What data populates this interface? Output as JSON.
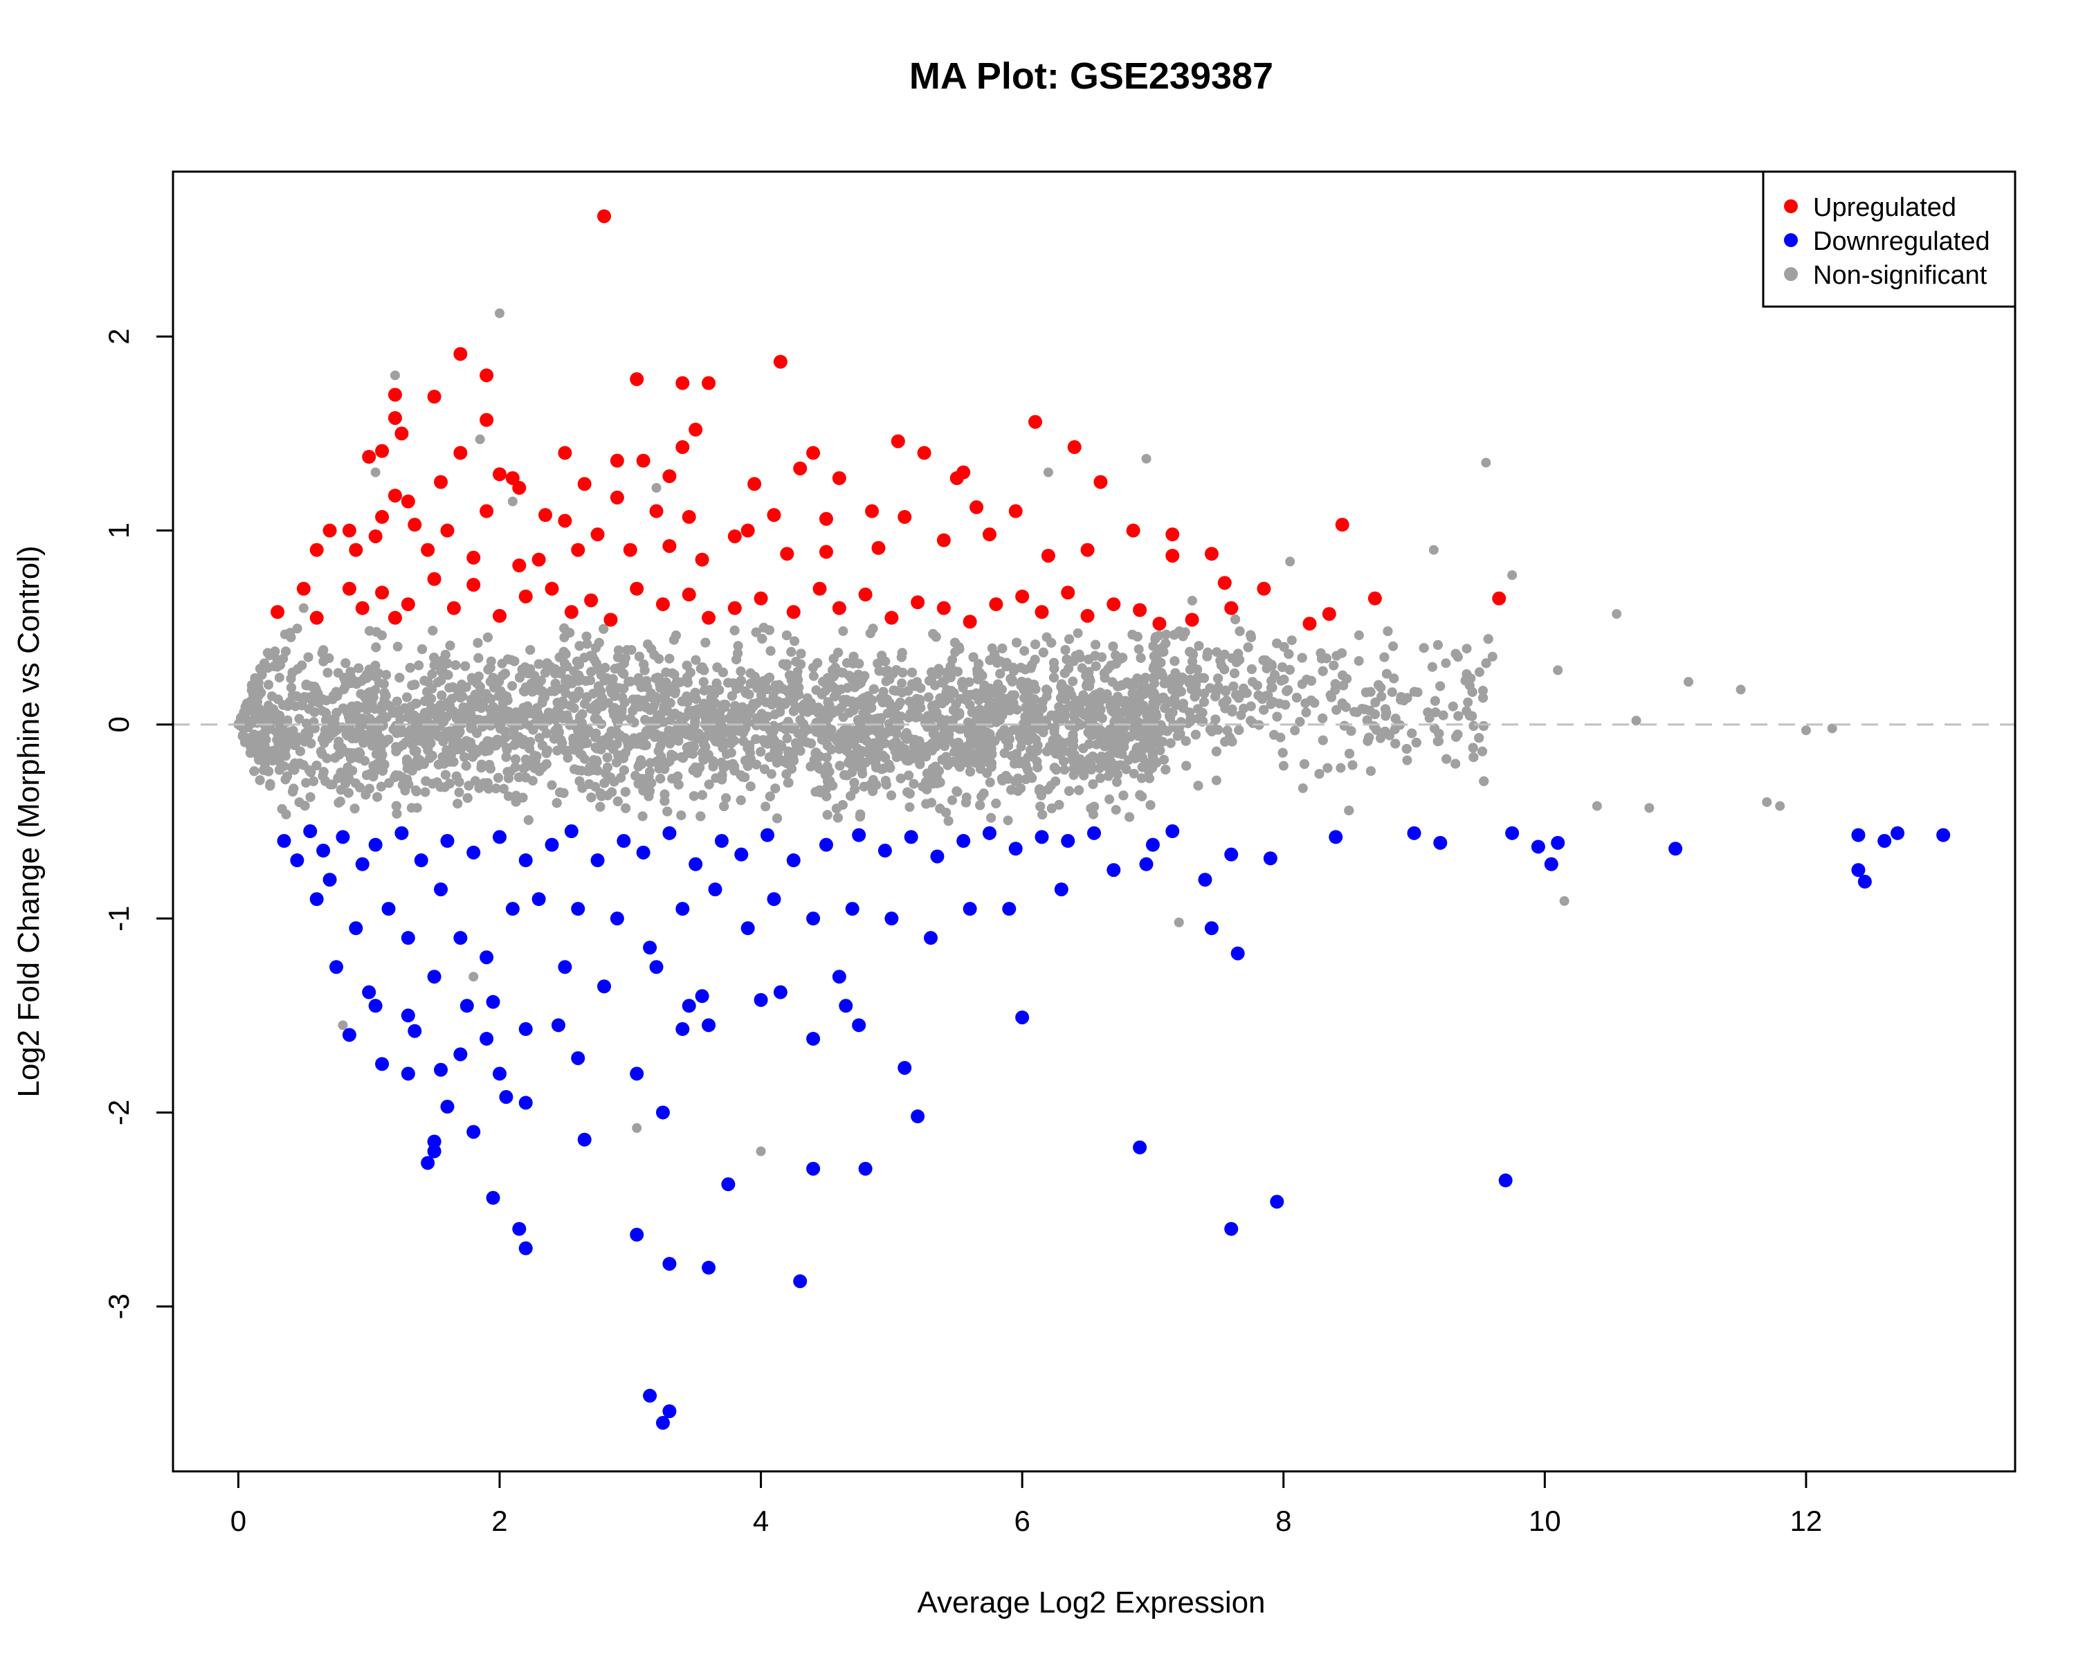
{
  "chart_data": {
    "type": "scatter",
    "title": "MA Plot: GSE239387",
    "xlabel": "Average Log2 Expression",
    "ylabel": "Log2 Fold Change (Morphine vs Control)",
    "xlim": [
      -0.5,
      13.6
    ],
    "ylim": [
      -3.85,
      2.85
    ],
    "x_ticks": [
      0,
      2,
      4,
      6,
      8,
      10,
      12
    ],
    "x_tick_labels": [
      "0",
      "2",
      "4",
      "6",
      "8",
      "10",
      "12"
    ],
    "y_ticks": [
      -3,
      -2,
      -1,
      0,
      1,
      2
    ],
    "y_tick_labels": [
      "-3",
      "-2",
      "-1",
      "0",
      "1",
      "2"
    ],
    "reference_line_y": 0,
    "legend_position": "top-right",
    "series": [
      {
        "name": "Upregulated",
        "color": "#ff0000",
        "points": [
          [
            2.8,
            2.62
          ],
          [
            1.7,
            1.91
          ],
          [
            1.9,
            1.8
          ],
          [
            4.15,
            1.87
          ],
          [
            3.05,
            1.78
          ],
          [
            3.4,
            1.76
          ],
          [
            3.6,
            1.76
          ],
          [
            1.5,
            1.69
          ],
          [
            1.2,
            1.7
          ],
          [
            1.2,
            1.58
          ],
          [
            1.25,
            1.5
          ],
          [
            1.9,
            1.57
          ],
          [
            3.5,
            1.52
          ],
          [
            6.1,
            1.56
          ],
          [
            5.05,
            1.46
          ],
          [
            6.4,
            1.43
          ],
          [
            1.1,
            1.41
          ],
          [
            1.7,
            1.4
          ],
          [
            2.5,
            1.4
          ],
          [
            3.1,
            1.36
          ],
          [
            2.9,
            1.36
          ],
          [
            5.25,
            1.4
          ],
          [
            4.4,
            1.4
          ],
          [
            3.4,
            1.43
          ],
          [
            1.0,
            1.38
          ],
          [
            1.2,
            1.18
          ],
          [
            1.3,
            1.15
          ],
          [
            1.55,
            1.25
          ],
          [
            2.0,
            1.29
          ],
          [
            2.1,
            1.27
          ],
          [
            2.15,
            1.22
          ],
          [
            2.65,
            1.24
          ],
          [
            3.3,
            1.28
          ],
          [
            3.95,
            1.24
          ],
          [
            4.3,
            1.32
          ],
          [
            4.6,
            1.27
          ],
          [
            5.5,
            1.27
          ],
          [
            5.55,
            1.3
          ],
          [
            6.6,
            1.25
          ],
          [
            1.1,
            1.07
          ],
          [
            1.35,
            1.03
          ],
          [
            1.6,
            1.0
          ],
          [
            1.9,
            1.1
          ],
          [
            2.35,
            1.08
          ],
          [
            2.5,
            1.05
          ],
          [
            2.9,
            1.17
          ],
          [
            3.2,
            1.1
          ],
          [
            3.45,
            1.07
          ],
          [
            3.9,
            1.0
          ],
          [
            4.1,
            1.08
          ],
          [
            4.5,
            1.06
          ],
          [
            4.85,
            1.1
          ],
          [
            5.1,
            1.07
          ],
          [
            5.65,
            1.12
          ],
          [
            5.95,
            1.1
          ],
          [
            0.6,
            0.9
          ],
          [
            0.7,
            1.0
          ],
          [
            0.85,
            1.0
          ],
          [
            0.9,
            0.9
          ],
          [
            1.05,
            0.97
          ],
          [
            1.45,
            0.9
          ],
          [
            1.8,
            0.86
          ],
          [
            2.15,
            0.82
          ],
          [
            2.3,
            0.85
          ],
          [
            2.6,
            0.9
          ],
          [
            2.75,
            0.98
          ],
          [
            3.0,
            0.9
          ],
          [
            3.3,
            0.92
          ],
          [
            3.55,
            0.85
          ],
          [
            3.8,
            0.97
          ],
          [
            4.2,
            0.88
          ],
          [
            4.5,
            0.89
          ],
          [
            4.9,
            0.91
          ],
          [
            5.4,
            0.95
          ],
          [
            5.75,
            0.98
          ],
          [
            6.2,
            0.87
          ],
          [
            6.5,
            0.9
          ],
          [
            6.85,
            1.0
          ],
          [
            7.15,
            0.98
          ],
          [
            7.15,
            0.87
          ],
          [
            7.45,
            0.88
          ],
          [
            8.45,
            1.03
          ],
          [
            0.3,
            0.58
          ],
          [
            0.5,
            0.7
          ],
          [
            0.6,
            0.55
          ],
          [
            0.85,
            0.7
          ],
          [
            0.95,
            0.6
          ],
          [
            1.1,
            0.68
          ],
          [
            1.2,
            0.55
          ],
          [
            1.3,
            0.62
          ],
          [
            1.5,
            0.75
          ],
          [
            1.65,
            0.6
          ],
          [
            1.8,
            0.72
          ],
          [
            2.0,
            0.56
          ],
          [
            2.2,
            0.66
          ],
          [
            2.4,
            0.7
          ],
          [
            2.55,
            0.58
          ],
          [
            2.7,
            0.64
          ],
          [
            2.85,
            0.54
          ],
          [
            3.05,
            0.7
          ],
          [
            3.25,
            0.62
          ],
          [
            3.45,
            0.67
          ],
          [
            3.6,
            0.55
          ],
          [
            3.8,
            0.6
          ],
          [
            4.0,
            0.65
          ],
          [
            4.25,
            0.58
          ],
          [
            4.45,
            0.7
          ],
          [
            4.6,
            0.6
          ],
          [
            4.8,
            0.67
          ],
          [
            5.0,
            0.55
          ],
          [
            5.2,
            0.63
          ],
          [
            5.4,
            0.6
          ],
          [
            5.6,
            0.53
          ],
          [
            5.8,
            0.62
          ],
          [
            6.0,
            0.66
          ],
          [
            6.15,
            0.58
          ],
          [
            6.35,
            0.68
          ],
          [
            6.5,
            0.56
          ],
          [
            6.7,
            0.62
          ],
          [
            6.9,
            0.59
          ],
          [
            7.05,
            0.52
          ],
          [
            7.3,
            0.54
          ],
          [
            7.6,
            0.6
          ],
          [
            7.85,
            0.7
          ],
          [
            8.2,
            0.52
          ],
          [
            8.35,
            0.57
          ],
          [
            8.7,
            0.65
          ],
          [
            9.65,
            0.65
          ],
          [
            7.55,
            0.73
          ]
        ]
      },
      {
        "name": "Downregulated",
        "color": "#0000ff",
        "points": [
          [
            3.25,
            -3.6
          ],
          [
            3.3,
            -3.54
          ],
          [
            3.15,
            -3.46
          ],
          [
            4.3,
            -2.87
          ],
          [
            3.3,
            -2.78
          ],
          [
            3.6,
            -2.8
          ],
          [
            2.2,
            -2.7
          ],
          [
            3.05,
            -2.63
          ],
          [
            2.15,
            -2.6
          ],
          [
            7.6,
            -2.6
          ],
          [
            7.95,
            -2.46
          ],
          [
            1.95,
            -2.44
          ],
          [
            3.75,
            -2.37
          ],
          [
            9.7,
            -2.35
          ],
          [
            4.4,
            -2.29
          ],
          [
            4.8,
            -2.29
          ],
          [
            1.45,
            -2.26
          ],
          [
            1.5,
            -2.2
          ],
          [
            1.5,
            -2.15
          ],
          [
            2.65,
            -2.14
          ],
          [
            6.9,
            -2.18
          ],
          [
            1.8,
            -2.1
          ],
          [
            5.2,
            -2.02
          ],
          [
            3.25,
            -2.0
          ],
          [
            1.6,
            -1.97
          ],
          [
            2.05,
            -1.92
          ],
          [
            2.2,
            -1.95
          ],
          [
            1.3,
            -1.8
          ],
          [
            1.1,
            -1.75
          ],
          [
            1.55,
            -1.78
          ],
          [
            1.7,
            -1.7
          ],
          [
            2.0,
            -1.8
          ],
          [
            2.6,
            -1.72
          ],
          [
            2.45,
            -1.55
          ],
          [
            2.2,
            -1.57
          ],
          [
            3.05,
            -1.8
          ],
          [
            5.1,
            -1.77
          ],
          [
            4.75,
            -1.55
          ],
          [
            4.4,
            -1.62
          ],
          [
            6.0,
            -1.51
          ],
          [
            0.85,
            -1.6
          ],
          [
            1.35,
            -1.58
          ],
          [
            1.9,
            -1.62
          ],
          [
            3.4,
            -1.57
          ],
          [
            3.6,
            -1.55
          ],
          [
            0.75,
            -1.25
          ],
          [
            1.0,
            -1.38
          ],
          [
            1.05,
            -1.45
          ],
          [
            1.3,
            -1.5
          ],
          [
            1.5,
            -1.3
          ],
          [
            1.75,
            -1.45
          ],
          [
            1.95,
            -1.43
          ],
          [
            2.5,
            -1.25
          ],
          [
            2.8,
            -1.35
          ],
          [
            3.2,
            -1.25
          ],
          [
            3.45,
            -1.45
          ],
          [
            3.55,
            -1.4
          ],
          [
            4.0,
            -1.42
          ],
          [
            4.15,
            -1.38
          ],
          [
            4.6,
            -1.3
          ],
          [
            4.65,
            -1.45
          ],
          [
            7.45,
            -1.05
          ],
          [
            7.65,
            -1.18
          ],
          [
            0.6,
            -0.9
          ],
          [
            0.7,
            -0.8
          ],
          [
            0.9,
            -1.05
          ],
          [
            1.15,
            -0.95
          ],
          [
            1.3,
            -1.1
          ],
          [
            1.55,
            -0.85
          ],
          [
            1.7,
            -1.1
          ],
          [
            1.9,
            -1.2
          ],
          [
            2.1,
            -0.95
          ],
          [
            2.3,
            -0.9
          ],
          [
            2.6,
            -0.95
          ],
          [
            2.9,
            -1.0
          ],
          [
            3.15,
            -1.15
          ],
          [
            3.4,
            -0.95
          ],
          [
            3.65,
            -0.85
          ],
          [
            3.9,
            -1.05
          ],
          [
            4.1,
            -0.9
          ],
          [
            4.4,
            -1.0
          ],
          [
            4.7,
            -0.95
          ],
          [
            5.0,
            -1.0
          ],
          [
            5.3,
            -1.1
          ],
          [
            5.6,
            -0.95
          ],
          [
            5.9,
            -0.95
          ],
          [
            6.3,
            -0.85
          ],
          [
            6.7,
            -0.75
          ],
          [
            6.95,
            -0.72
          ],
          [
            7.15,
            -0.55
          ],
          [
            7.4,
            -0.8
          ],
          [
            7.6,
            -0.67
          ],
          [
            7.9,
            -0.69
          ],
          [
            8.4,
            -0.58
          ],
          [
            9.0,
            -0.56
          ],
          [
            9.2,
            -0.61
          ],
          [
            9.75,
            -0.56
          ],
          [
            9.95,
            -0.63
          ],
          [
            10.05,
            -0.72
          ],
          [
            10.1,
            -0.61
          ],
          [
            11.0,
            -0.64
          ],
          [
            12.4,
            -0.57
          ],
          [
            12.4,
            -0.75
          ],
          [
            12.45,
            -0.81
          ],
          [
            12.6,
            -0.6
          ],
          [
            12.7,
            -0.56
          ],
          [
            13.05,
            -0.57
          ],
          [
            0.35,
            -0.6
          ],
          [
            0.45,
            -0.7
          ],
          [
            0.55,
            -0.55
          ],
          [
            0.65,
            -0.65
          ],
          [
            0.8,
            -0.58
          ],
          [
            0.95,
            -0.72
          ],
          [
            1.05,
            -0.62
          ],
          [
            1.25,
            -0.56
          ],
          [
            1.4,
            -0.7
          ],
          [
            1.6,
            -0.6
          ],
          [
            1.8,
            -0.66
          ],
          [
            2.0,
            -0.58
          ],
          [
            2.2,
            -0.7
          ],
          [
            2.4,
            -0.62
          ],
          [
            2.55,
            -0.55
          ],
          [
            2.75,
            -0.7
          ],
          [
            2.95,
            -0.6
          ],
          [
            3.1,
            -0.66
          ],
          [
            3.3,
            -0.56
          ],
          [
            3.5,
            -0.72
          ],
          [
            3.7,
            -0.6
          ],
          [
            3.85,
            -0.67
          ],
          [
            4.05,
            -0.57
          ],
          [
            4.25,
            -0.7
          ],
          [
            4.5,
            -0.62
          ],
          [
            4.75,
            -0.57
          ],
          [
            4.95,
            -0.65
          ],
          [
            5.15,
            -0.58
          ],
          [
            5.35,
            -0.68
          ],
          [
            5.55,
            -0.6
          ],
          [
            5.75,
            -0.56
          ],
          [
            5.95,
            -0.64
          ],
          [
            6.15,
            -0.58
          ],
          [
            6.35,
            -0.6
          ],
          [
            6.55,
            -0.56
          ],
          [
            7.0,
            -0.62
          ]
        ]
      },
      {
        "name": "Non-significant",
        "color": "#a0a0a0",
        "outliers": [
          [
            2.0,
            2.12
          ],
          [
            1.2,
            1.8
          ],
          [
            1.05,
            1.3
          ],
          [
            1.85,
            1.47
          ],
          [
            6.95,
            1.37
          ],
          [
            9.55,
            1.35
          ],
          [
            2.1,
            1.15
          ],
          [
            3.2,
            1.22
          ],
          [
            9.15,
            0.9
          ],
          [
            9.75,
            0.77
          ],
          [
            8.05,
            0.84
          ],
          [
            6.2,
            1.3
          ],
          [
            0.5,
            0.6
          ],
          [
            1.8,
            -1.3
          ],
          [
            0.8,
            -1.55
          ],
          [
            4.0,
            -2.2
          ],
          [
            3.05,
            -2.08
          ],
          [
            7.2,
            -1.02
          ],
          [
            10.15,
            -0.91
          ],
          [
            11.7,
            -0.4
          ],
          [
            11.8,
            -0.42
          ],
          [
            10.8,
            -0.43
          ],
          [
            11.5,
            0.18
          ],
          [
            11.1,
            0.22
          ],
          [
            10.55,
            0.57
          ],
          [
            10.1,
            0.28
          ],
          [
            9.6,
            0.35
          ],
          [
            9.5,
            0.27
          ],
          [
            10.4,
            -0.42
          ],
          [
            10.7,
            0.02
          ],
          [
            12.0,
            -0.03
          ],
          [
            12.2,
            -0.02
          ]
        ]
      }
    ]
  }
}
